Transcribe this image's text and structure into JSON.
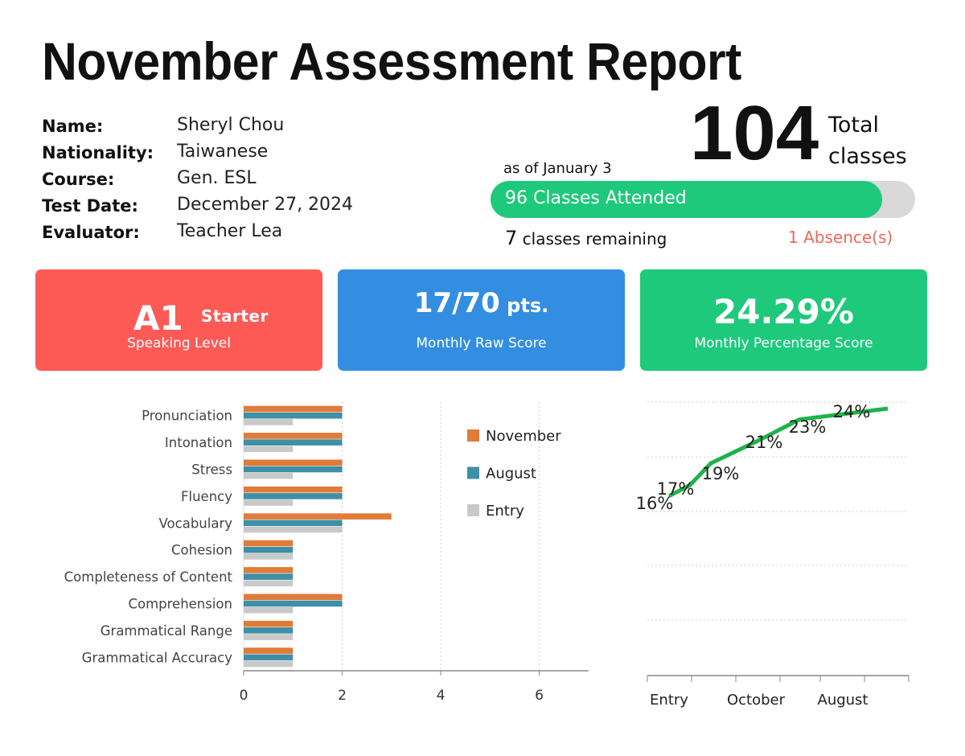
{
  "report": {
    "title": "November Assessment Report"
  },
  "student": {
    "labels": [
      "Name:",
      "Nationality:",
      "Course:",
      "Test Date:",
      "Evaluator:"
    ],
    "values": [
      "Sheryl Chou",
      "Taiwanese",
      "Gen. ESL",
      "December 27, 2024",
      "Teacher Lea"
    ]
  },
  "attendance": {
    "total": "104",
    "total_label_line1": "Total",
    "total_label_line2": "classes",
    "as_of": "as of January 3",
    "attended_label": "96 Classes Attended",
    "attended": 96,
    "total_value": 104,
    "remaining_count": "7",
    "remaining_text": " classes remaining",
    "absence_count": "1",
    "absence_text": " Absence(s)"
  },
  "cards": {
    "level": {
      "value": "A1",
      "tag": "Starter",
      "label": "Speaking Level",
      "color": "#fd5a56"
    },
    "raw": {
      "value": "17/70",
      "unit": " pts.",
      "label": "Monthly Raw Score",
      "color": "#338ee1"
    },
    "percent": {
      "value": "24.29%",
      "label": "Monthly Percentage Score",
      "color": "#1ec97c"
    }
  },
  "chart_data": [
    {
      "type": "bar",
      "orientation": "horizontal",
      "categories": [
        "Pronunciation",
        "Intonation",
        "Stress",
        "Fluency",
        "Vocabulary",
        "Cohesion",
        "Completeness of Content",
        "Comprehension",
        "Grammatical Range",
        "Grammatical Accuracy"
      ],
      "series": [
        {
          "name": "November",
          "color": "#e07b39",
          "values": [
            2,
            2,
            2,
            2,
            3,
            1,
            1,
            2,
            1,
            1
          ]
        },
        {
          "name": "August",
          "color": "#3f8fa7",
          "values": [
            2,
            2,
            2,
            2,
            2,
            1,
            1,
            2,
            1,
            1
          ]
        },
        {
          "name": "Entry",
          "color": "#c9c9c9",
          "values": [
            1,
            1,
            1,
            1,
            2,
            1,
            1,
            1,
            1,
            1
          ]
        }
      ],
      "xlim": [
        0,
        7
      ],
      "xticks": [
        0,
        2,
        4,
        6
      ],
      "grid": "vertical",
      "legend": "right"
    },
    {
      "type": "line",
      "color": "#1db34a",
      "values": [
        16,
        17,
        19,
        21,
        23,
        24
      ],
      "data_labels": [
        "16%",
        "17%",
        "19%",
        "21%",
        "23%",
        "24%"
      ],
      "tick_labels": [
        "Entry",
        "October",
        "August"
      ],
      "grid": "horizontal"
    }
  ]
}
